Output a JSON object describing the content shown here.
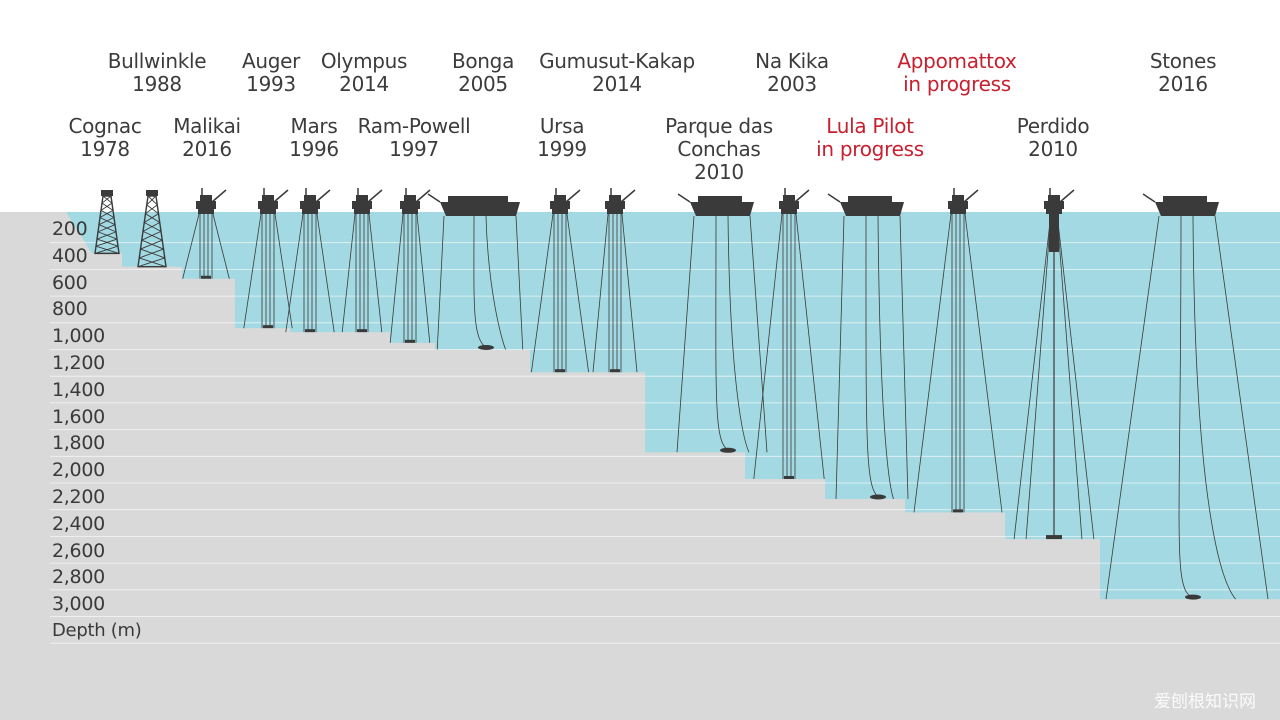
{
  "depth_axis": {
    "title": "Depth (m)",
    "ticks": [
      "200",
      "400",
      "600",
      "800",
      "1,000",
      "1,200",
      "1,400",
      "1,600",
      "1,800",
      "2,000",
      "2,200",
      "2,400",
      "2,600",
      "2,800",
      "3,000"
    ]
  },
  "colors": {
    "water": "#a2d9e2",
    "seabed": "#d9d9d9",
    "structure": "#3a3a3a",
    "label": "#3c3c3c",
    "in_progress": "#c8202f"
  },
  "structures": [
    {
      "name": "Cognac",
      "status": "1978",
      "depth": 310,
      "kind": "jacket",
      "in_progress": false
    },
    {
      "name": "Bullwinkle",
      "status": "1988",
      "depth": 410,
      "kind": "jacket",
      "in_progress": false
    },
    {
      "name": "Malikai",
      "status": "2016",
      "depth": 500,
      "kind": "tlp",
      "in_progress": false
    },
    {
      "name": "Auger",
      "status": "1993",
      "depth": 870,
      "kind": "tlp",
      "in_progress": false
    },
    {
      "name": "Mars",
      "status": "1996",
      "depth": 900,
      "kind": "tlp",
      "in_progress": false
    },
    {
      "name": "Olympus",
      "status": "2014",
      "depth": 900,
      "kind": "tlp",
      "in_progress": false
    },
    {
      "name": "Ram-Powell",
      "status": "1997",
      "depth": 980,
      "kind": "tlp",
      "in_progress": false
    },
    {
      "name": "Bonga",
      "status": "2005",
      "depth": 1030,
      "kind": "fpso",
      "in_progress": false
    },
    {
      "name": "Ursa",
      "status": "1999",
      "depth": 1200,
      "kind": "tlp",
      "in_progress": false
    },
    {
      "name": "Gumusut-Kakap",
      "status": "2014",
      "depth": 1200,
      "kind": "semi",
      "in_progress": false
    },
    {
      "name": "Parque das Conchas",
      "status": "2010",
      "depth": 1800,
      "kind": "fpso",
      "in_progress": false
    },
    {
      "name": "Na Kika",
      "status": "2003",
      "depth": 2000,
      "kind": "semi",
      "in_progress": false
    },
    {
      "name": "Lula Pilot",
      "status": "in progress",
      "depth": 2150,
      "kind": "fpso",
      "in_progress": true
    },
    {
      "name": "Appomattox",
      "status": "in progress",
      "depth": 2250,
      "kind": "semi",
      "in_progress": true
    },
    {
      "name": "Perdido",
      "status": "2010",
      "depth": 2450,
      "kind": "spar",
      "in_progress": false
    },
    {
      "name": "Stones",
      "status": "2016",
      "depth": 2900,
      "kind": "fpso",
      "in_progress": false
    }
  ],
  "watermark": "爱刨根知识网"
}
